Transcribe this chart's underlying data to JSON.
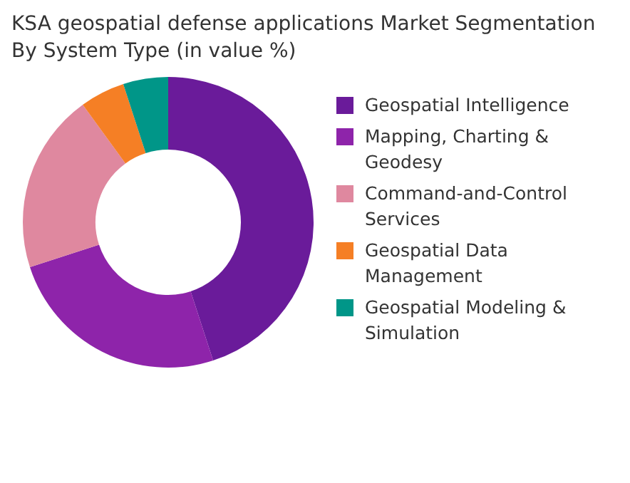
{
  "chart_data": {
    "type": "donut",
    "title": "KSA geospatial defense applications Market Segmentation By System Type (in value %)",
    "categories": [
      "Geospatial Intelligence",
      "Mapping, Charting & Geodesy",
      "Command-and-Control Services",
      "Geospatial Data Management",
      "Geospatial Modeling & Simulation"
    ],
    "values": [
      45,
      25,
      20,
      5,
      5
    ],
    "colors": [
      "#6a1b9a",
      "#8e24aa",
      "#df889f",
      "#f57f25",
      "#009688"
    ],
    "legend": "right"
  }
}
